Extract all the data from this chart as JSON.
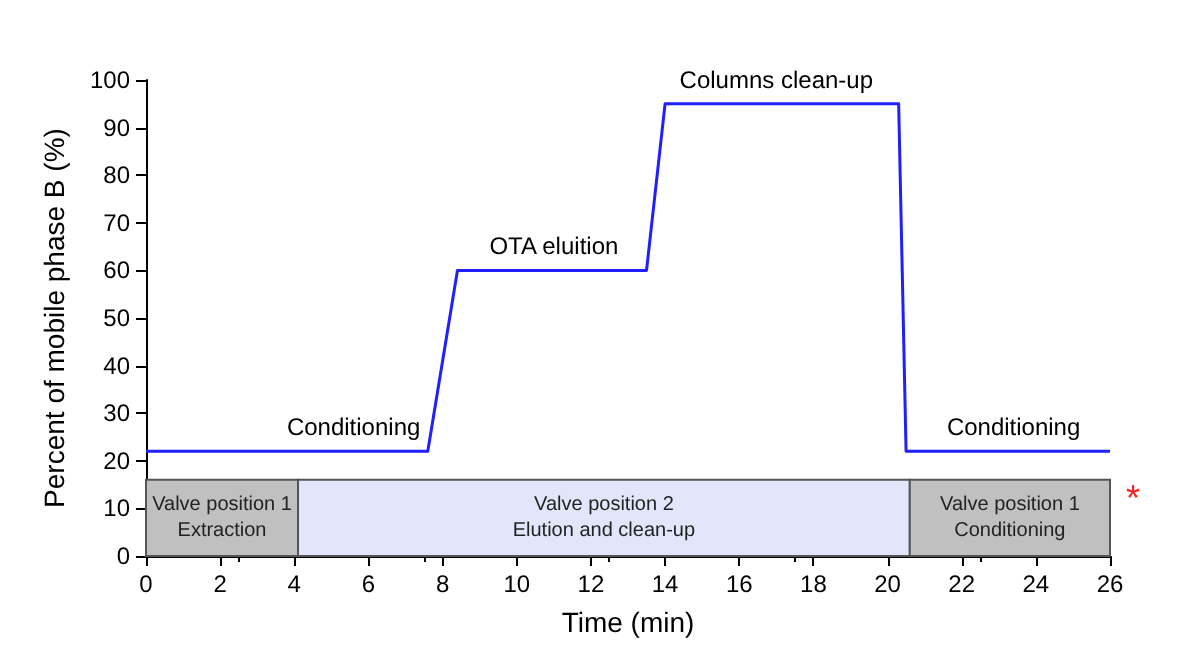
{
  "chart_data": {
    "type": "line",
    "xlabel": "Time (min)",
    "ylabel": "Percent of mobile phase B (%)",
    "x": [
      0,
      7.6,
      8.4,
      13.5,
      14,
      20.3,
      20.5,
      26
    ],
    "series": [
      {
        "color": "#1f1fff",
        "values": [
          22,
          22,
          60,
          60,
          95,
          95,
          22,
          22
        ]
      }
    ],
    "xlim": [
      0,
      26
    ],
    "xticks": [
      0,
      2,
      4,
      6,
      8,
      10,
      12,
      14,
      16,
      18,
      20,
      22,
      24,
      26
    ],
    "ylim": [
      0,
      100
    ],
    "yticks": [
      0,
      10,
      20,
      30,
      40,
      50,
      60,
      70,
      80,
      90,
      100
    ],
    "grid": false,
    "marker": "none",
    "line_style": "solid",
    "bands": [
      {
        "axis": "x",
        "from": 0,
        "to": 4.1,
        "label": "Valve position 1\nExtraction",
        "color": "#c0c0c0"
      },
      {
        "axis": "x",
        "from": 4.1,
        "to": 20.6,
        "label": "Valve position 2\nElution and clean-up",
        "color": "#e1e6fa"
      },
      {
        "axis": "x",
        "from": 20.6,
        "to": 26,
        "label": "Valve position 1\nConditioning",
        "color": "#c0c0c0"
      }
    ],
    "annotations": [
      {
        "text": "Conditioning",
        "x": 5.6,
        "y": 22
      },
      {
        "text": "OTA eluition",
        "x": 11,
        "y": 60
      },
      {
        "text": "Columns clean-up",
        "x": 17,
        "y": 95
      },
      {
        "text": "Conditioning",
        "x": 23.4,
        "y": 22
      },
      "*"
    ]
  }
}
